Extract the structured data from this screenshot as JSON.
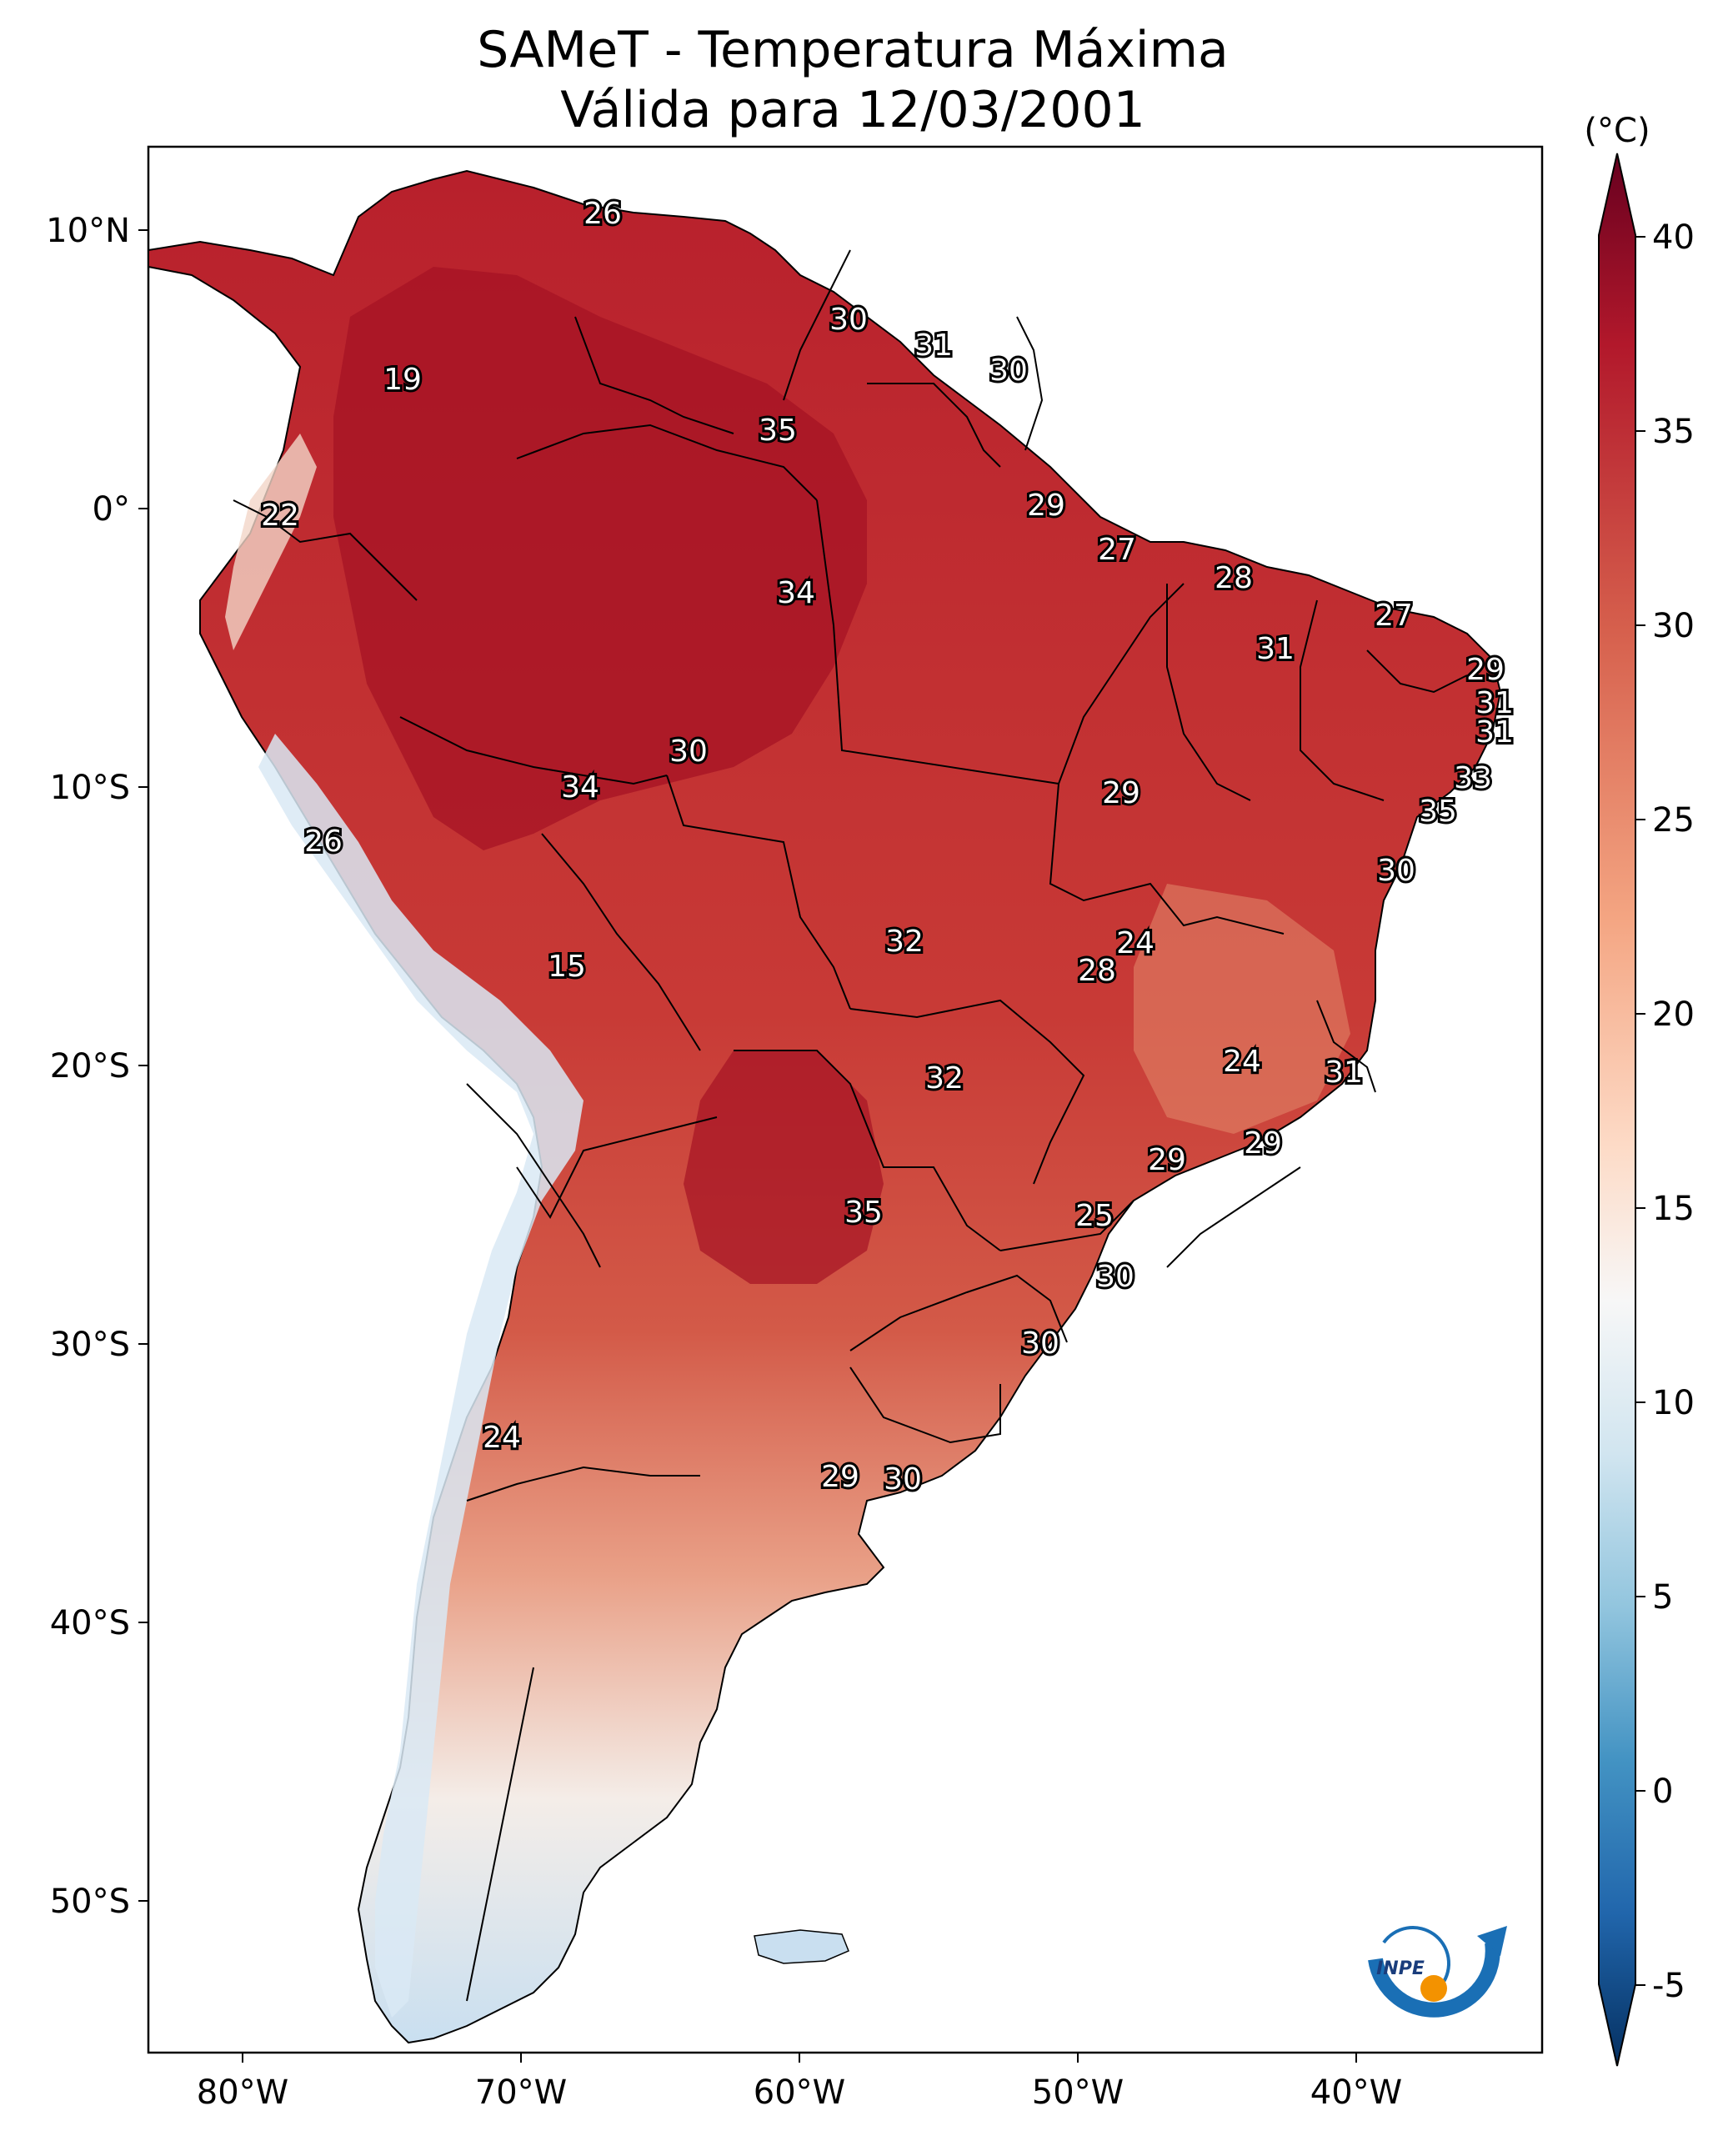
{
  "title": {
    "line1": "SAMeT - Temperatura Máxima",
    "line2": "Válida para 12/03/2001"
  },
  "colorbar": {
    "unit": "(°C)",
    "ticks": [
      "40",
      "35",
      "30",
      "25",
      "20",
      "15",
      "10",
      "5",
      "0",
      "-5"
    ],
    "colors": [
      "#67001f",
      "#b2182b",
      "#d6604d",
      "#f4a582",
      "#fddbc7",
      "#f7f7f7",
      "#d1e5f0",
      "#92c5de",
      "#4393c3",
      "#2166ac",
      "#053061"
    ]
  },
  "axes": {
    "lat_ticks": [
      "10°N",
      "0°",
      "10°S",
      "20°S",
      "30°S",
      "40°S",
      "50°S"
    ],
    "lon_ticks": [
      "80°W",
      "70°W",
      "60°W",
      "50°W",
      "40°W"
    ]
  },
  "logo": {
    "text": "INPE",
    "arc_color": "#1a6fb5",
    "dot_color": "#f39200"
  },
  "station_labels": [
    {
      "v": "26"
    },
    {
      "v": "30"
    },
    {
      "v": "31"
    },
    {
      "v": "30"
    },
    {
      "v": "19"
    },
    {
      "v": "35"
    },
    {
      "v": "22"
    },
    {
      "v": "29"
    },
    {
      "v": "27"
    },
    {
      "v": "34"
    },
    {
      "v": "28"
    },
    {
      "v": "27"
    },
    {
      "v": "31"
    },
    {
      "v": "29"
    },
    {
      "v": "31"
    },
    {
      "v": "31"
    },
    {
      "v": "30"
    },
    {
      "v": "34"
    },
    {
      "v": "29"
    },
    {
      "v": "33"
    },
    {
      "v": "35"
    },
    {
      "v": "26"
    },
    {
      "v": "30"
    },
    {
      "v": "24"
    },
    {
      "v": "15"
    },
    {
      "v": "32"
    },
    {
      "v": "28"
    },
    {
      "v": "24"
    },
    {
      "v": "32"
    },
    {
      "v": "31"
    },
    {
      "v": "29"
    },
    {
      "v": "29"
    },
    {
      "v": "35"
    },
    {
      "v": "25"
    },
    {
      "v": "30"
    },
    {
      "v": "30"
    },
    {
      "v": "24"
    },
    {
      "v": "29"
    },
    {
      "v": "30"
    }
  ]
}
